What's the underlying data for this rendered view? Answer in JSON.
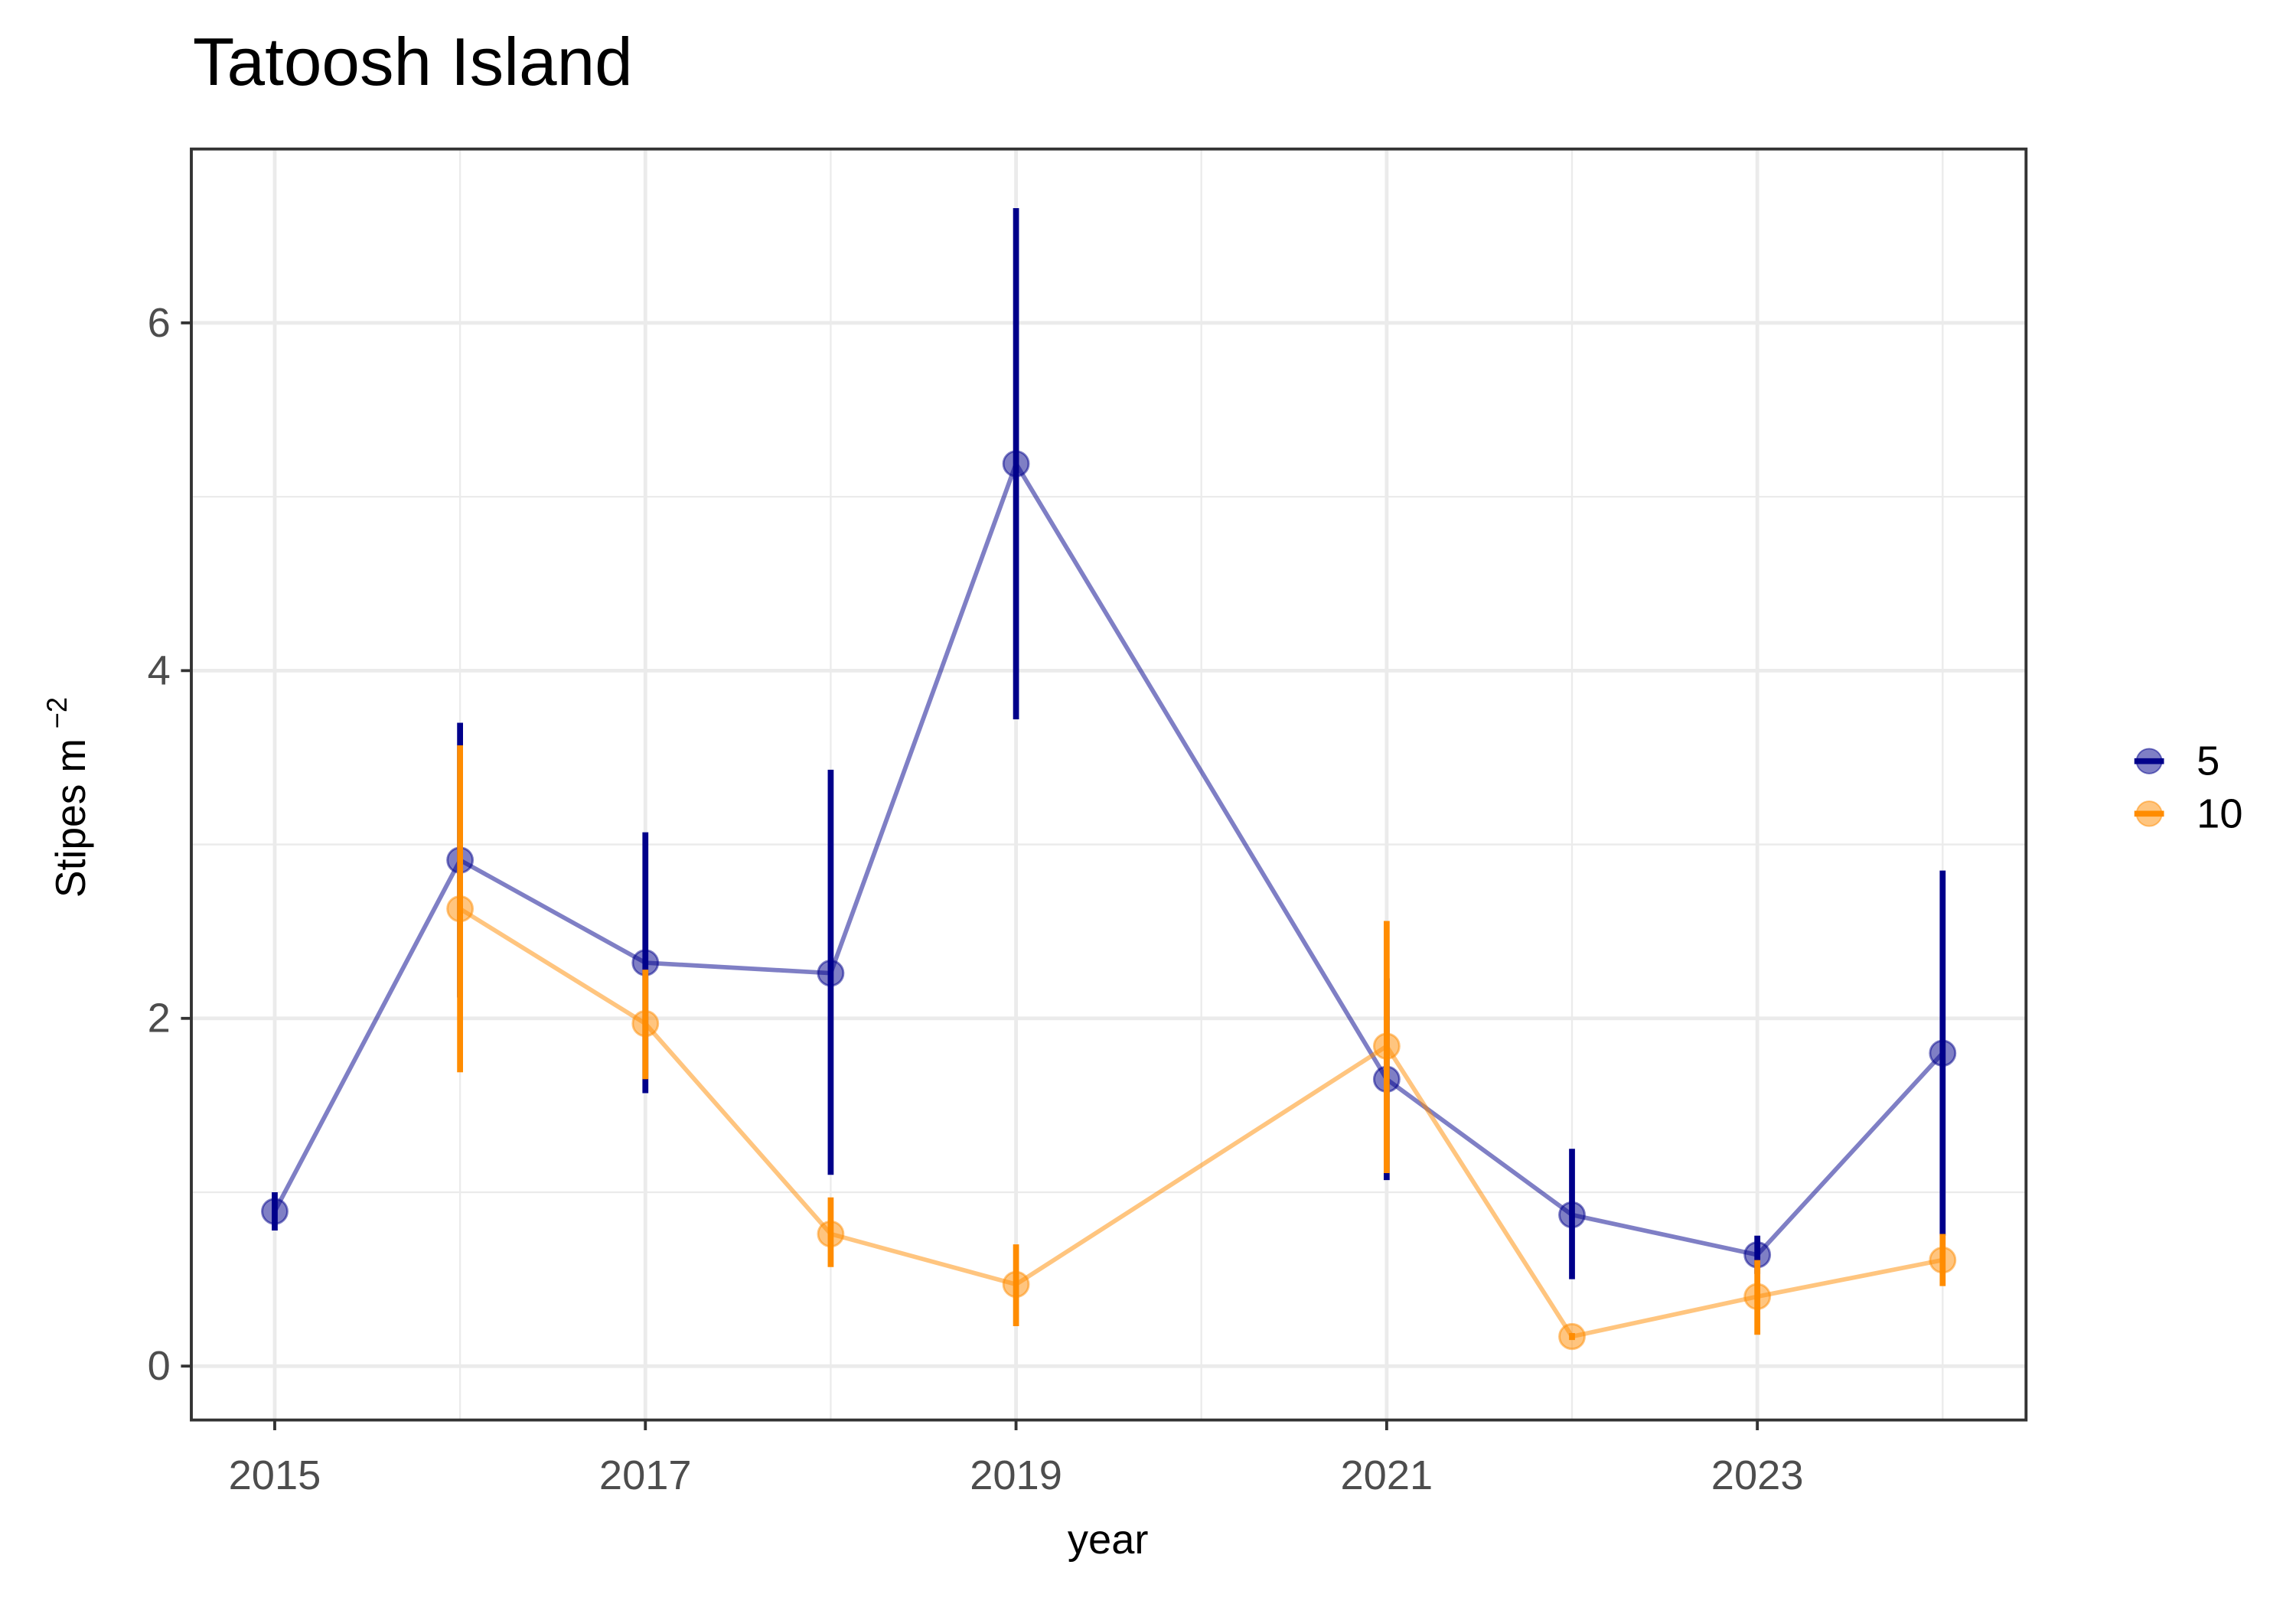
{
  "chart_data": {
    "type": "line",
    "title": "Tatoosh Island",
    "x_label": "year",
    "y_label": "Stipes m",
    "y_label_superscript": "−2",
    "x": [
      2015,
      2016,
      2017,
      2018,
      2019,
      2021,
      2022,
      2023,
      2024
    ],
    "xlim": [
      2014.55,
      2024.45
    ],
    "xticks": [
      2015,
      2017,
      2019,
      2021,
      2023
    ],
    "ylim": [
      -0.31,
      7.0
    ],
    "yticks": [
      0,
      2,
      4,
      6
    ],
    "grid": true,
    "legend": "right",
    "series": [
      {
        "name": "5",
        "color": "#00008B",
        "values": [
          0.89,
          2.91,
          2.32,
          2.26,
          5.19,
          1.65,
          0.87,
          0.64,
          1.8
        ],
        "lower": [
          0.78,
          2.12,
          1.57,
          1.1,
          3.72,
          1.07,
          0.5,
          0.53,
          0.75
        ],
        "upper": [
          1.0,
          3.7,
          3.07,
          3.43,
          6.66,
          2.23,
          1.25,
          0.75,
          2.85
        ]
      },
      {
        "name": "10",
        "color": "#FF8C00",
        "values": [
          null,
          2.63,
          1.97,
          0.76,
          0.47,
          1.84,
          0.17,
          0.4,
          0.61
        ],
        "lower": [
          null,
          1.69,
          1.65,
          0.57,
          0.23,
          1.11,
          0.15,
          0.18,
          0.46
        ],
        "upper": [
          null,
          3.57,
          2.28,
          0.97,
          0.7,
          2.56,
          0.19,
          0.61,
          0.76
        ]
      }
    ]
  }
}
